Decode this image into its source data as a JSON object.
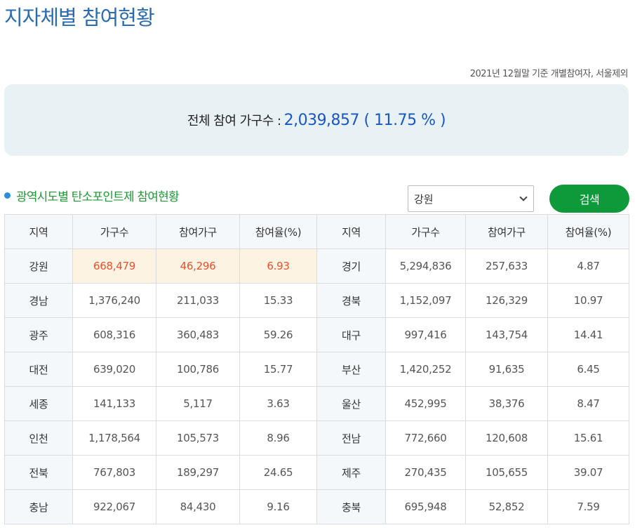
{
  "page": {
    "title": "지자체별 참여현황",
    "basis_note": "2021년 12월말 기준 개별참여자, 서울제외"
  },
  "summary": {
    "label": "전체 참여 가구수 :",
    "value": "2,039,857 ( 11.75 % )"
  },
  "section": {
    "title": "광역시도별 탄소포인트제 참여현황"
  },
  "filter": {
    "selected_region": "강원",
    "search_label": "검색"
  },
  "colors": {
    "title_blue": "#2b6cb0",
    "summary_value_blue": "#1a56c4",
    "section_green": "#1e9a34",
    "button_green": "#0e9a3a",
    "highlight_bg": "#fdf3e3",
    "highlight_text": "#e8502c"
  },
  "table": {
    "headers": [
      "지역",
      "가구수",
      "참여가구",
      "참여율(%)",
      "지역",
      "가구수",
      "참여가구",
      "참여율(%)"
    ],
    "rows": [
      [
        {
          "region": "강원",
          "households": "668,479",
          "participating": "46,296",
          "rate": "6.93"
        },
        {
          "region": "경기",
          "households": "5,294,836",
          "participating": "257,633",
          "rate": "4.87"
        }
      ],
      [
        {
          "region": "경남",
          "households": "1,376,240",
          "participating": "211,033",
          "rate": "15.33"
        },
        {
          "region": "경북",
          "households": "1,152,097",
          "participating": "126,329",
          "rate": "10.97"
        }
      ],
      [
        {
          "region": "광주",
          "households": "608,316",
          "participating": "360,483",
          "rate": "59.26"
        },
        {
          "region": "대구",
          "households": "997,416",
          "participating": "143,754",
          "rate": "14.41"
        }
      ],
      [
        {
          "region": "대전",
          "households": "639,020",
          "participating": "100,786",
          "rate": "15.77"
        },
        {
          "region": "부산",
          "households": "1,420,252",
          "participating": "91,635",
          "rate": "6.45"
        }
      ],
      [
        {
          "region": "세종",
          "households": "141,133",
          "participating": "5,117",
          "rate": "3.63"
        },
        {
          "region": "울산",
          "households": "452,995",
          "participating": "38,376",
          "rate": "8.47"
        }
      ],
      [
        {
          "region": "인천",
          "households": "1,178,564",
          "participating": "105,573",
          "rate": "8.96"
        },
        {
          "region": "전남",
          "households": "772,660",
          "participating": "120,608",
          "rate": "15.61"
        }
      ],
      [
        {
          "region": "전북",
          "households": "767,803",
          "participating": "189,297",
          "rate": "24.65"
        },
        {
          "region": "제주",
          "households": "270,435",
          "participating": "105,655",
          "rate": "39.07"
        }
      ],
      [
        {
          "region": "충남",
          "households": "922,067",
          "participating": "84,430",
          "rate": "9.16"
        },
        {
          "region": "충북",
          "households": "695,948",
          "participating": "52,852",
          "rate": "7.59"
        }
      ]
    ]
  }
}
